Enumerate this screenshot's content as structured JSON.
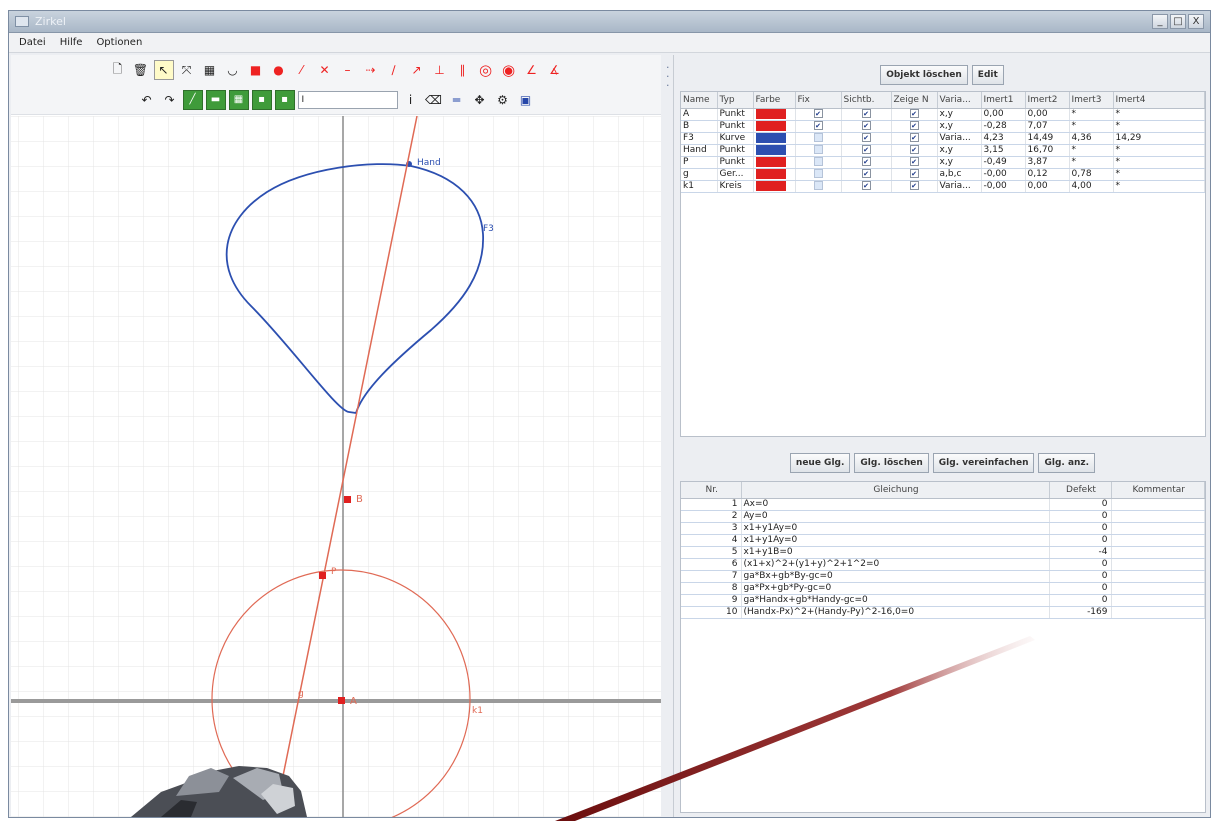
{
  "window": {
    "title": "Zirkel",
    "buttons": [
      "_",
      "□",
      "X"
    ]
  },
  "menu": [
    "Datei",
    "Hilfe",
    "Optionen"
  ],
  "toolbar": {
    "row1_icons": [
      "new-doc-icon",
      "delete-icon",
      "select-icon",
      "move-icon",
      "save-icon",
      "arc-icon",
      "square-point-icon",
      "point-icon",
      "line-icon",
      "cross-icon",
      "segment-icon",
      "ray-icon",
      "slider-icon",
      "vector-icon",
      "perpendicular-icon",
      "parallel-icon",
      "circle-icon",
      "circle3-icon",
      "angle-icon",
      "angle2-icon"
    ],
    "command_value": "I"
  },
  "objects": {
    "buttons": [
      "Objekt löschen",
      "Edit"
    ],
    "columns": [
      "Name",
      "Typ",
      "Farbe",
      "Fix",
      "Sichtb.",
      "Zeige N",
      "Varia...",
      "Imert1",
      "Imert2",
      "Imert3",
      "Imert4"
    ],
    "rows": [
      {
        "name": "A",
        "type": "Punkt",
        "color": "#e02020",
        "fix": true,
        "visible": true,
        "show": true,
        "var": "x,y",
        "v1": "0,00",
        "v2": "0,00",
        "v3": "*",
        "v4": "*"
      },
      {
        "name": "B",
        "type": "Punkt",
        "color": "#e02020",
        "fix": true,
        "visible": true,
        "show": true,
        "var": "x,y",
        "v1": "-0,28",
        "v2": "7,07",
        "v3": "*",
        "v4": "*"
      },
      {
        "name": "F3",
        "type": "Kurve",
        "color": "#2c4fb0",
        "fix": false,
        "visible": true,
        "show": true,
        "var": "Varia...",
        "v1": "4,23",
        "v2": "14,49",
        "v3": "4,36",
        "v4": "14,29"
      },
      {
        "name": "Hand",
        "type": "Punkt",
        "color": "#2c4fb0",
        "fix": false,
        "visible": true,
        "show": true,
        "var": "x,y",
        "v1": "3,15",
        "v2": "16,70",
        "v3": "*",
        "v4": "*"
      },
      {
        "name": "P",
        "type": "Punkt",
        "color": "#e02020",
        "fix": false,
        "visible": true,
        "show": true,
        "var": "x,y",
        "v1": "-0,49",
        "v2": "3,87",
        "v3": "*",
        "v4": "*"
      },
      {
        "name": "g",
        "type": "Ger...",
        "color": "#e02020",
        "fix": false,
        "visible": true,
        "show": true,
        "var": "a,b,c",
        "v1": "-0,00",
        "v2": "0,12",
        "v3": "0,78",
        "v4": "*"
      },
      {
        "name": "k1",
        "type": "Kreis",
        "color": "#e02020",
        "fix": false,
        "visible": true,
        "show": true,
        "var": "Varia...",
        "v1": "-0,00",
        "v2": "0,00",
        "v3": "4,00",
        "v4": "*"
      }
    ]
  },
  "equations": {
    "buttons": [
      "neue Glg.",
      "Glg. löschen",
      "Glg. vereinfachen",
      "Glg. anz."
    ],
    "columns": [
      "Nr.",
      "Gleichung",
      "Defekt",
      "Kommentar"
    ],
    "rows": [
      {
        "nr": "1",
        "eq": "Ax=0",
        "defect": "0"
      },
      {
        "nr": "2",
        "eq": "Ay=0",
        "defect": "0"
      },
      {
        "nr": "3",
        "eq": "x1+y1Ay=0",
        "defect": "0"
      },
      {
        "nr": "4",
        "eq": "x1+y1Ay=0",
        "defect": "0"
      },
      {
        "nr": "5",
        "eq": "x1+y1B=0",
        "defect": "-4"
      },
      {
        "nr": "6",
        "eq": "(x1+x)^2+(y1+y)^2+1^2=0",
        "defect": "0"
      },
      {
        "nr": "7",
        "eq": "ga*Bx+gb*By-gc=0",
        "defect": "0"
      },
      {
        "nr": "8",
        "eq": "ga*Px+gb*Py-gc=0",
        "defect": "0"
      },
      {
        "nr": "9",
        "eq": "ga*Handx+gb*Handy-gc=0",
        "defect": "0"
      },
      {
        "nr": "10",
        "eq": "(Handx-Px)^2+(Handy-Py)^2-16,0=0",
        "defect": "-169"
      }
    ]
  },
  "canvas_labels": {
    "hand": "Hand",
    "f3": "F3",
    "b": "B",
    "p": "P",
    "a": "A",
    "k1": "k1",
    "g": "g"
  },
  "colors": {
    "curve": "#2c4fb0",
    "construction": "#e06a55",
    "point": "#e02020",
    "axis": "#8a8a8a",
    "grid": "#e2e2e2"
  }
}
